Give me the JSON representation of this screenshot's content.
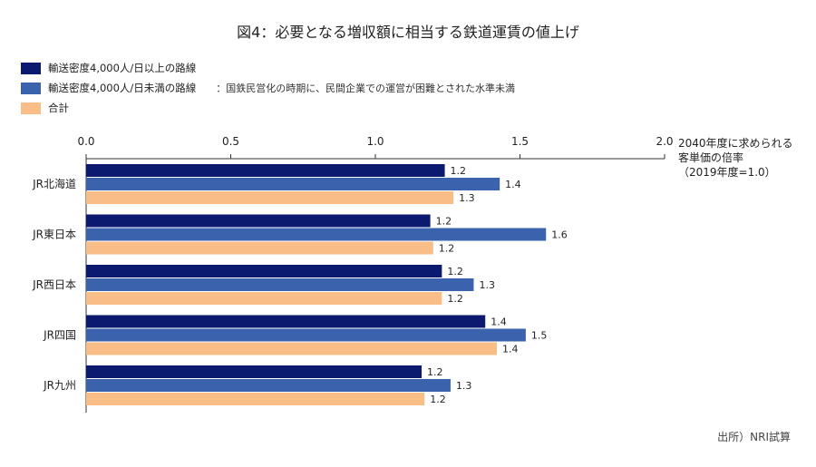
{
  "title": "図4：必要となる増収額に相当する鉄道運賃の値上げ",
  "unit_label": {
    "line1": "2040年度に求められる",
    "line2": "客単価の倍率",
    "line3": "（2019年度=1.0）"
  },
  "source": "出所）NRI試算",
  "legend_note": "：国鉄民営化の時期に、民間企業での運営が困難とされた水準未満",
  "colors": {
    "high_density": "#0b1a6e",
    "low_density": "#3b63ad",
    "total": "#f9bd88"
  },
  "chart_data": {
    "type": "bar",
    "orientation": "horizontal",
    "categories": [
      "JR北海道",
      "JR東日本",
      "JR西日本",
      "JR四国",
      "JR九州"
    ],
    "series": [
      {
        "name": "輸送密度4,000人/日以上の路線",
        "values": [
          1.2,
          1.2,
          1.2,
          1.4,
          1.2
        ]
      },
      {
        "name": "輸送密度4,000人/日未満の路線",
        "values": [
          1.4,
          1.6,
          1.3,
          1.5,
          1.3
        ]
      },
      {
        "name": "合計",
        "values": [
          1.3,
          1.2,
          1.2,
          1.4,
          1.2
        ]
      }
    ],
    "data_labels": [
      [
        "1.2",
        "1.4",
        "1.3"
      ],
      [
        "1.2",
        "1.6",
        "1.2"
      ],
      [
        "1.2",
        "1.3",
        "1.2"
      ],
      [
        "1.4",
        "1.5",
        "1.4"
      ],
      [
        "1.2",
        "1.3",
        "1.2"
      ]
    ],
    "bar_values": [
      [
        1.24,
        1.43,
        1.27
      ],
      [
        1.19,
        1.59,
        1.2
      ],
      [
        1.23,
        1.34,
        1.23
      ],
      [
        1.38,
        1.52,
        1.42
      ],
      [
        1.16,
        1.26,
        1.17
      ]
    ],
    "xlim": [
      0,
      2.0
    ],
    "xticks": [
      "0.0",
      "0.5",
      "1.0",
      "1.5",
      "2.0"
    ],
    "axis_position": "top",
    "legend_position": "top-left"
  }
}
